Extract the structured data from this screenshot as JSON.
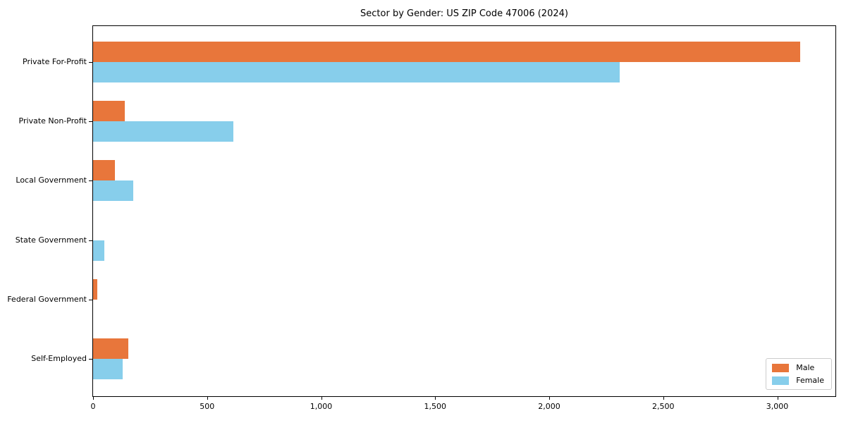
{
  "title": "Sector by Gender: US ZIP Code 47006 (2024)",
  "chart_data": {
    "type": "bar",
    "orientation": "horizontal",
    "title": "Sector by Gender: US ZIP Code 47006 (2024)",
    "xlabel": "",
    "ylabel": "",
    "categories": [
      "Private For-Profit",
      "Private Non-Profit",
      "Local Government",
      "State Government",
      "Federal Government",
      "Self-Employed"
    ],
    "series": [
      {
        "name": "Male",
        "color": "#E8763B",
        "values": [
          3100,
          140,
          95,
          0,
          20,
          155
        ]
      },
      {
        "name": "Female",
        "color": "#87CEEB",
        "values": [
          2310,
          615,
          175,
          50,
          0,
          130
        ]
      }
    ],
    "xlim": [
      0,
      3255
    ],
    "xticks": [
      0,
      500,
      1000,
      1500,
      2000,
      2500,
      3000
    ],
    "xtick_labels": [
      "0",
      "500",
      "1,000",
      "1,500",
      "2,000",
      "2,500",
      "3,000"
    ],
    "grid": false,
    "legend_position": "lower right"
  }
}
